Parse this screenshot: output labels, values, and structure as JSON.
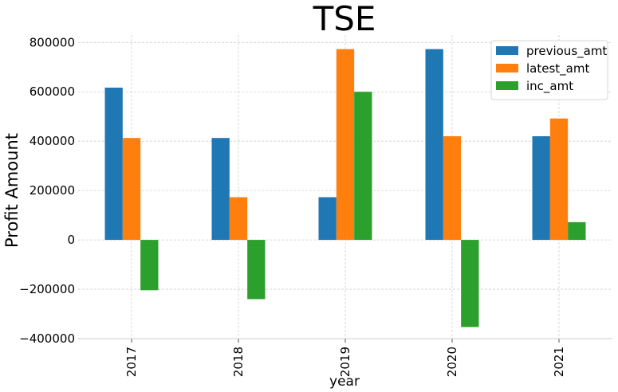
{
  "chart_data": {
    "type": "bar",
    "title": "TSE",
    "xlabel": "year",
    "ylabel": "Profit Amount",
    "categories": [
      "2017",
      "2018",
      "2019",
      "2020",
      "2021"
    ],
    "series": [
      {
        "name": "previous_amt",
        "color": "#1f77b4",
        "values": [
          617000,
          413000,
          173000,
          773000,
          420000
        ]
      },
      {
        "name": "latest_amt",
        "color": "#ff7f0e",
        "values": [
          413000,
          173000,
          773000,
          420000,
          492000
        ]
      },
      {
        "name": "inc_amt",
        "color": "#2ca02c",
        "values": [
          -204000,
          -240000,
          600000,
          -353000,
          72000
        ]
      }
    ],
    "ylim": [
      -400000,
      830000
    ],
    "yticks": [
      -400000,
      -200000,
      0,
      200000,
      400000,
      600000,
      800000
    ],
    "ytick_labels": [
      "−400000",
      "−200000",
      "0",
      "200000",
      "400000",
      "600000",
      "800000"
    ],
    "grid": true,
    "legend_position": "top-right"
  }
}
